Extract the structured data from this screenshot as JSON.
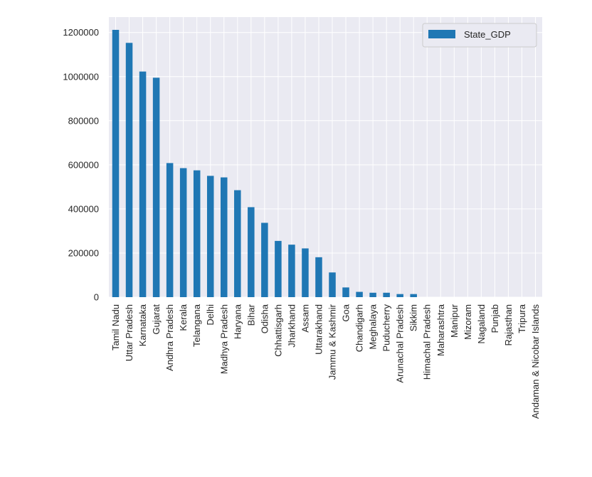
{
  "chart_data": {
    "type": "bar",
    "title": "",
    "xlabel": "",
    "ylabel": "",
    "ylim": [
      0,
      1270000
    ],
    "yticks": [
      0,
      200000,
      400000,
      600000,
      800000,
      1000000,
      1200000
    ],
    "grid": true,
    "legend_position": "top-right",
    "categories": [
      "Tamil Nadu",
      "Uttar Pradesh",
      "Karnataka",
      "Gujarat",
      "Andhra Pradesh",
      "Kerala",
      "Telangana",
      "Delhi",
      "Madhya Pradesh",
      "Haryana",
      "Bihar",
      "Odisha",
      "Chhattisgarh",
      "Jharkhand",
      "Assam",
      "Uttarakhand",
      "Jammu & Kashmir",
      "Goa",
      "Chandigarh",
      "Meghalaya",
      "Puducherry",
      "Arunachal Pradesh",
      "Sikkim",
      "Himachal Pradesh",
      "Maharashtra",
      "Manipur",
      "Mizoram",
      "Nagaland",
      "Punjab",
      "Rajasthan",
      "Tripura",
      "Andaman & Nicobar Islands"
    ],
    "series": [
      {
        "name": "State_GDP",
        "color": "#1f77b4",
        "values": [
          1212000,
          1153000,
          1023000,
          995000,
          608000,
          585000,
          575000,
          550000,
          543000,
          485000,
          408000,
          337000,
          255000,
          238000,
          221000,
          181000,
          112000,
          44000,
          24000,
          20000,
          20000,
          14000,
          14000,
          0,
          0,
          0,
          0,
          0,
          0,
          0,
          0,
          0
        ]
      }
    ]
  }
}
